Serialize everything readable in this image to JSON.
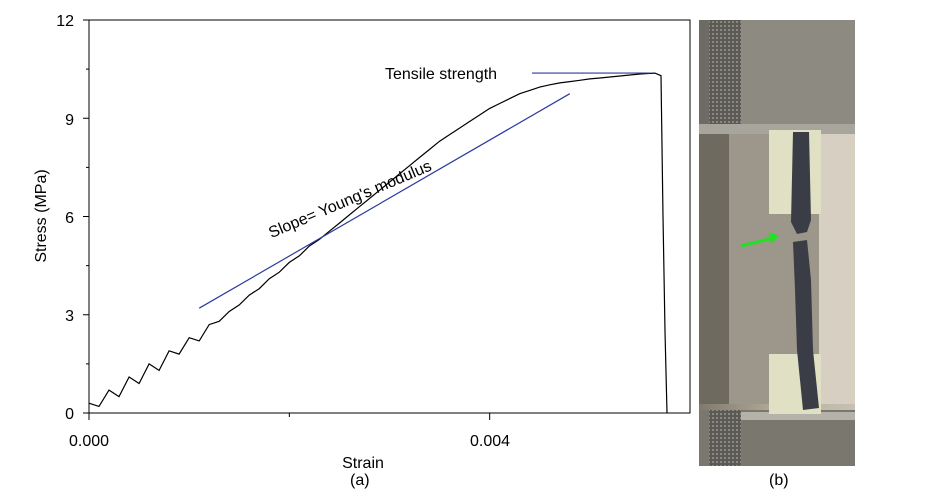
{
  "chart_data": {
    "type": "line",
    "xlabel": "Strain",
    "ylabel": "Stress (MPa)",
    "xlim": [
      0,
      0.006
    ],
    "ylim": [
      0,
      12
    ],
    "x_ticks": [
      "0.000",
      "0.004"
    ],
    "y_ticks": [
      "0",
      "3",
      "6",
      "9",
      "12"
    ],
    "grid": false,
    "series": [
      {
        "x": [
          0.0,
          0.0001,
          0.0002,
          0.0003,
          0.0004,
          0.0005,
          0.0006,
          0.0007,
          0.0008,
          0.0009,
          0.001,
          0.0011,
          0.0012,
          0.0013,
          0.0014,
          0.0015,
          0.0016,
          0.0017,
          0.0018,
          0.0019,
          0.002,
          0.0021,
          0.0022,
          0.0023,
          0.0024,
          0.0025,
          0.0026,
          0.0027,
          0.0028,
          0.0029,
          0.003,
          0.0031,
          0.0032,
          0.0033,
          0.0034,
          0.0035,
          0.0036,
          0.0037,
          0.0038,
          0.0039,
          0.004,
          0.0041,
          0.0042,
          0.0043,
          0.0044,
          0.0045,
          0.0046,
          0.0047,
          0.0048,
          0.0049,
          0.005,
          0.0051,
          0.0052,
          0.0053,
          0.0054,
          0.0055,
          0.0056,
          0.00565,
          0.00571,
          0.00573,
          0.00575,
          0.00577
        ],
        "values": [
          0.3,
          0.2,
          0.7,
          0.5,
          1.1,
          0.9,
          1.5,
          1.3,
          1.9,
          1.8,
          2.3,
          2.2,
          2.7,
          2.8,
          3.1,
          3.3,
          3.6,
          3.8,
          4.1,
          4.3,
          4.6,
          4.8,
          5.1,
          5.3,
          5.55,
          5.8,
          6.05,
          6.3,
          6.55,
          6.8,
          7.05,
          7.3,
          7.55,
          7.8,
          8.05,
          8.3,
          8.5,
          8.7,
          8.9,
          9.1,
          9.3,
          9.45,
          9.6,
          9.75,
          9.85,
          9.95,
          10.02,
          10.08,
          10.12,
          10.16,
          10.2,
          10.23,
          10.26,
          10.29,
          10.32,
          10.35,
          10.37,
          10.38,
          10.3,
          6.0,
          2.5,
          0.0
        ]
      }
    ],
    "annotations": [
      {
        "text": "Tensile strength",
        "y": 10.38
      },
      {
        "text": "Slope= Young's modulus",
        "x0": 0.0011,
        "y0": 3.2,
        "x1": 0.0048,
        "y1": 9.75
      }
    ],
    "colors": {
      "curve": "#000000",
      "annotation_line": "#2b3a9e"
    }
  },
  "panels": {
    "a_label": "(a)",
    "b_label": "(b)"
  },
  "photo": {
    "arrow_color": "#22e022",
    "subject": "tensile test specimen fractured in grips"
  }
}
